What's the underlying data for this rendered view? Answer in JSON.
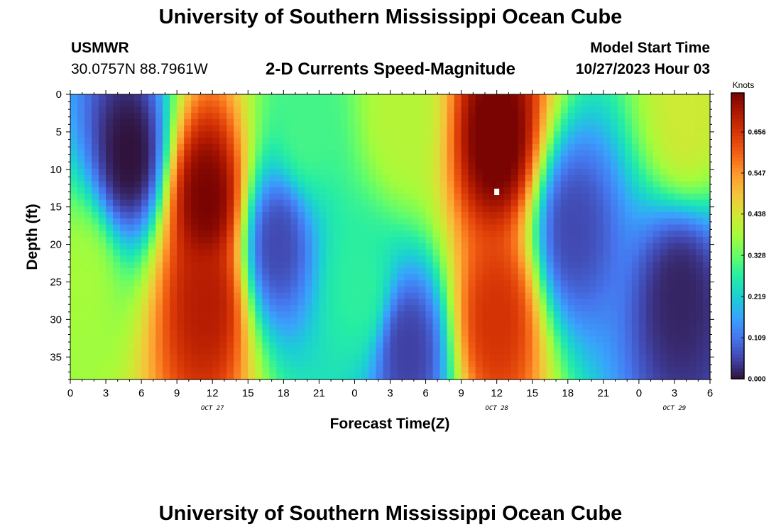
{
  "header": {
    "title": "University of Southern Mississippi Ocean Cube",
    "station": "USMWR",
    "coords": "30.0757N  88.7961W",
    "model_start_label": "Model Start Time",
    "model_start_value": "10/27/2023 Hour 03"
  },
  "footer": {
    "title": "University of Southern Mississippi Ocean Cube"
  },
  "chart_data": {
    "type": "heatmap",
    "title": "2-D Currents Speed-Magnitude",
    "xlabel": "Forecast Time(Z)",
    "ylabel": "Depth (ft)",
    "x_range_hours": [
      0,
      54
    ],
    "y_range_ft": [
      0,
      38
    ],
    "y_inverted": true,
    "x_tick_labels": [
      "0",
      "3",
      "6",
      "9",
      "12",
      "15",
      "18",
      "21",
      "0",
      "3",
      "6",
      "9",
      "12",
      "15",
      "18",
      "21",
      "0",
      "3",
      "6"
    ],
    "y_ticks": [
      "0",
      "5",
      "10",
      "15",
      "20",
      "25",
      "30",
      "35"
    ],
    "date_labels": [
      {
        "label": "OCT 27",
        "hour": 12
      },
      {
        "label": "OCT 28",
        "hour": 36
      },
      {
        "label": "OCT 29",
        "hour": 51
      }
    ],
    "colorbar": {
      "unit": "Knots",
      "ticks": [
        "0.000",
        "0.109",
        "0.219",
        "0.328",
        "0.438",
        "0.547",
        "0.656"
      ],
      "range": [
        0,
        0.76
      ],
      "colormap": [
        "#30123b",
        "#4145ab",
        "#4675ed",
        "#39a2fc",
        "#1bcfd4",
        "#24eca6",
        "#61fc6c",
        "#a4fc3b",
        "#d1e834",
        "#f3c63a",
        "#fe9b2d",
        "#f36315",
        "#d93806",
        "#b11901",
        "#7a0402"
      ]
    },
    "marker": {
      "hour": 36,
      "depth_ft": 13
    },
    "features": [
      {
        "type": "min",
        "hour": 5,
        "depth_ft": 8,
        "speed": 0.0
      },
      {
        "type": "max",
        "hour": 11.5,
        "depth_ft": 14,
        "speed": 0.76
      },
      {
        "type": "max",
        "hour": 11.5,
        "depth_ft": 28,
        "speed": 0.7
      },
      {
        "type": "max",
        "hour": 1,
        "depth_ft": 25,
        "speed": 0.38
      },
      {
        "type": "min",
        "hour": 17.5,
        "depth_ft": 20,
        "speed": 0.06
      },
      {
        "type": "min",
        "hour": 28.5,
        "depth_ft": 34,
        "speed": 0.05
      },
      {
        "type": "max",
        "hour": 28,
        "depth_ft": 3,
        "speed": 0.4
      },
      {
        "type": "max",
        "hour": 36,
        "depth_ft": 6,
        "speed": 0.78
      },
      {
        "type": "max",
        "hour": 36,
        "depth_ft": 30,
        "speed": 0.66
      },
      {
        "type": "min",
        "hour": 42.5,
        "depth_ft": 18,
        "speed": 0.06
      },
      {
        "type": "min",
        "hour": 51.5,
        "depth_ft": 27,
        "speed": 0.02
      },
      {
        "type": "max",
        "hour": 52,
        "depth_ft": 3,
        "speed": 0.43
      },
      {
        "type": "max",
        "hour": 20,
        "depth_ft": 4,
        "speed": 0.3
      },
      {
        "type": "max",
        "hour": 24.5,
        "depth_ft": 26,
        "speed": 0.28
      }
    ]
  }
}
